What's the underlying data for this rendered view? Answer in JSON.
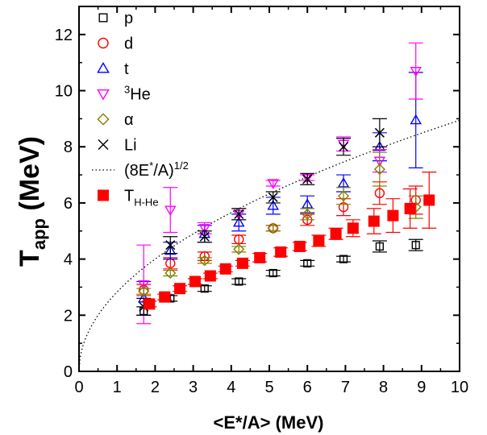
{
  "chart_data": {
    "type": "scatter",
    "xlabel": "<E*/A> (MeV)",
    "ylabel": {
      "main": "T",
      "sub": "app",
      "rest": " (MeV)"
    },
    "xlim": [
      0,
      10
    ],
    "ylim": [
      0,
      13
    ],
    "xticks": [
      0,
      1,
      2,
      3,
      4,
      5,
      6,
      7,
      8,
      9,
      10
    ],
    "yticks": [
      0,
      2,
      4,
      6,
      8,
      10,
      12
    ],
    "grid": false,
    "legend_position": "top-right",
    "series": [
      {
        "name": "p",
        "marker": "square-open",
        "color": "#000000",
        "points": [
          {
            "x": 1.7,
            "y": 2.15,
            "err": 0.15
          },
          {
            "x": 2.4,
            "y": 2.6,
            "err": 0.1
          },
          {
            "x": 3.3,
            "y": 2.95,
            "err": 0.1
          },
          {
            "x": 4.2,
            "y": 3.2,
            "err": 0.1
          },
          {
            "x": 5.1,
            "y": 3.5,
            "err": 0.1
          },
          {
            "x": 6.0,
            "y": 3.85,
            "err": 0.1
          },
          {
            "x": 6.95,
            "y": 4.0,
            "err": 0.1
          },
          {
            "x": 7.9,
            "y": 4.45,
            "err": 0.2
          },
          {
            "x": 8.85,
            "y": 4.5,
            "err": 0.2
          }
        ]
      },
      {
        "name": "d",
        "marker": "circle-open",
        "color": "#ff0000",
        "points": [
          {
            "x": 1.7,
            "y": 2.9,
            "err": 0.2
          },
          {
            "x": 2.4,
            "y": 3.85,
            "err": 0.2
          },
          {
            "x": 3.3,
            "y": 4.1,
            "err": 0.15
          },
          {
            "x": 4.2,
            "y": 4.7,
            "err": 0.15
          },
          {
            "x": 5.1,
            "y": 5.1,
            "err": 0.1
          },
          {
            "x": 6.0,
            "y": 5.4,
            "err": 0.2
          },
          {
            "x": 6.95,
            "y": 5.85,
            "err": 0.3
          },
          {
            "x": 7.9,
            "y": 6.35,
            "err": 0.4
          },
          {
            "x": 8.85,
            "y": 6.1,
            "err": 0.5
          }
        ]
      },
      {
        "name": "t",
        "marker": "triangle-up-open",
        "color": "#0000ff",
        "points": [
          {
            "x": 1.7,
            "y": 2.6,
            "err": 0.6
          },
          {
            "x": 2.4,
            "y": 4.3,
            "err": 0.3
          },
          {
            "x": 3.3,
            "y": 4.9,
            "err": 0.3
          },
          {
            "x": 4.2,
            "y": 5.3,
            "err": 0.3
          },
          {
            "x": 5.1,
            "y": 5.9,
            "err": 0.3
          },
          {
            "x": 6.0,
            "y": 5.95,
            "err": 0.3
          },
          {
            "x": 6.95,
            "y": 6.7,
            "err": 0.3
          },
          {
            "x": 7.9,
            "y": 8.0,
            "err": 0.5
          },
          {
            "x": 8.85,
            "y": 8.95,
            "err": 1.7
          }
        ]
      },
      {
        "name": "3He",
        "label_sup": "3",
        "label_base": "He",
        "marker": "triangle-down-open",
        "color": "#ff00ff",
        "points": [
          {
            "x": 1.7,
            "y": 3.1,
            "err": 1.4
          },
          {
            "x": 2.4,
            "y": 5.75,
            "err": 0.8
          },
          {
            "x": 3.3,
            "y": 5.1,
            "err": 0.2
          },
          {
            "x": 4.2,
            "y": 5.6,
            "err": 0.2
          },
          {
            "x": 5.1,
            "y": 6.7,
            "err": 0.1
          },
          {
            "x": 6.0,
            "y": 6.9,
            "err": 0.1
          },
          {
            "x": 6.95,
            "y": 8.1,
            "err": 0.25
          },
          {
            "x": 7.9,
            "y": 7.5,
            "err": 0.4
          },
          {
            "x": 8.85,
            "y": 10.7,
            "err": 1.0
          }
        ]
      },
      {
        "name": "α",
        "marker": "diamond-open",
        "color": "#808000",
        "points": [
          {
            "x": 1.7,
            "y": 2.85,
            "err": 0.1
          },
          {
            "x": 2.4,
            "y": 3.5,
            "err": 0.1
          },
          {
            "x": 3.3,
            "y": 3.95,
            "err": 0.1
          },
          {
            "x": 4.2,
            "y": 4.35,
            "err": 0.1
          },
          {
            "x": 5.1,
            "y": 5.1,
            "err": 0.1
          },
          {
            "x": 6.0,
            "y": 5.6,
            "err": 0.2
          },
          {
            "x": 6.95,
            "y": 6.25,
            "err": 0.3
          },
          {
            "x": 7.9,
            "y": 7.2,
            "err": 0.6
          },
          {
            "x": 8.85,
            "y": 5.85,
            "err": 0.4
          }
        ]
      },
      {
        "name": "Li",
        "marker": "x",
        "color": "#000000",
        "points": [
          {
            "x": 1.7,
            "y": 2.3,
            "err": 0.3
          },
          {
            "x": 2.4,
            "y": 4.5,
            "err": 0.3
          },
          {
            "x": 3.3,
            "y": 4.8,
            "err": 0.2
          },
          {
            "x": 4.2,
            "y": 5.6,
            "err": 0.2
          },
          {
            "x": 5.1,
            "y": 6.2,
            "err": 0.2
          },
          {
            "x": 6.0,
            "y": 6.85,
            "err": 0.2
          },
          {
            "x": 6.95,
            "y": 8.0,
            "err": 0.3
          },
          {
            "x": 7.9,
            "y": 8.5,
            "err": 0.5
          },
          {
            "x": 8.85,
            "y": null,
            "err": 0
          }
        ]
      },
      {
        "name": "TH-He",
        "label_base": "T",
        "label_sub": "H-He",
        "marker": "square-filled",
        "color": "#ff0000",
        "points": [
          {
            "x": 1.85,
            "y": 2.4,
            "err": 0.1
          },
          {
            "x": 2.25,
            "y": 2.65,
            "err": 0.1
          },
          {
            "x": 2.65,
            "y": 2.95,
            "err": 0.1
          },
          {
            "x": 3.05,
            "y": 3.2,
            "err": 0.1
          },
          {
            "x": 3.45,
            "y": 3.4,
            "err": 0.1
          },
          {
            "x": 3.85,
            "y": 3.65,
            "err": 0.1
          },
          {
            "x": 4.3,
            "y": 3.85,
            "err": 0.1
          },
          {
            "x": 4.75,
            "y": 4.05,
            "err": 0.15
          },
          {
            "x": 5.3,
            "y": 4.25,
            "err": 0.15
          },
          {
            "x": 5.8,
            "y": 4.45,
            "err": 0.15
          },
          {
            "x": 6.3,
            "y": 4.65,
            "err": 0.2
          },
          {
            "x": 6.75,
            "y": 4.9,
            "err": 0.2
          },
          {
            "x": 7.2,
            "y": 5.1,
            "err": 0.3
          },
          {
            "x": 7.75,
            "y": 5.35,
            "err": 0.45
          },
          {
            "x": 8.25,
            "y": 5.55,
            "err": 0.6
          },
          {
            "x": 8.7,
            "y": 5.8,
            "err": 0.7
          },
          {
            "x": 9.2,
            "y": 6.1,
            "err": 1.0
          }
        ]
      }
    ],
    "reference_curve": {
      "name": "(8E*/A)^1/2",
      "label_base": "(8E",
      "label_sup1": "*",
      "label_mid": "/A)",
      "label_sup2": "1/2",
      "style": "dotted",
      "color": "#000000",
      "formula": "sqrt(8x)"
    }
  }
}
